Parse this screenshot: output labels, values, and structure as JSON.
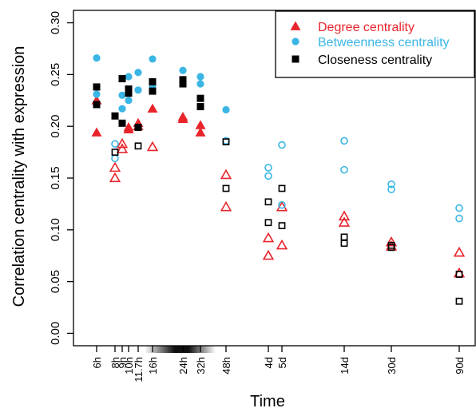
{
  "chart_data": {
    "type": "scatter",
    "xlabel": "Time",
    "ylabel": "Correlation centrality with expression",
    "ylim": [
      -0.012,
      0.312
    ],
    "y_ticks": [
      "0.00",
      "0.05",
      "0.10",
      "0.15",
      "0.20",
      "0.25",
      "0.30"
    ],
    "x_ticks": [
      "6h",
      "8h",
      "9h",
      "10h",
      "11.7h",
      "16h",
      "24h",
      "32h",
      "48h",
      "4d",
      "5d",
      "14d",
      "30d",
      "90d"
    ],
    "legend_position": "top-right",
    "note": "filled markers: 6h-32h (shaded light-dark period on x-axis); open markers: 48h-90d",
    "series": [
      {
        "name": "Degree centrality",
        "color": "#e8242b",
        "marker": "triangle",
        "points": [
          {
            "x": "6h",
            "y": 0.194,
            "filled": true
          },
          {
            "x": "6h",
            "y": 0.225,
            "filled": true
          },
          {
            "x": "8h",
            "y": 0.15,
            "filled": false
          },
          {
            "x": "8h",
            "y": 0.16,
            "filled": false
          },
          {
            "x": "9h",
            "y": 0.178,
            "filled": false
          },
          {
            "x": "9h",
            "y": 0.183,
            "filled": false
          },
          {
            "x": "10h",
            "y": 0.197,
            "filled": true
          },
          {
            "x": "10h",
            "y": 0.199,
            "filled": true
          },
          {
            "x": "11.7h",
            "y": 0.2,
            "filled": true
          },
          {
            "x": "11.7h",
            "y": 0.203,
            "filled": true
          },
          {
            "x": "16h",
            "y": 0.18,
            "filled": false
          },
          {
            "x": "16h",
            "y": 0.217,
            "filled": true
          },
          {
            "x": "24h",
            "y": 0.207,
            "filled": true
          },
          {
            "x": "24h",
            "y": 0.209,
            "filled": true
          },
          {
            "x": "32h",
            "y": 0.194,
            "filled": true
          },
          {
            "x": "32h",
            "y": 0.201,
            "filled": true
          },
          {
            "x": "48h",
            "y": 0.122,
            "filled": false
          },
          {
            "x": "48h",
            "y": 0.153,
            "filled": false
          },
          {
            "x": "4d",
            "y": 0.075,
            "filled": false
          },
          {
            "x": "4d",
            "y": 0.092,
            "filled": false
          },
          {
            "x": "5d",
            "y": 0.085,
            "filled": false
          },
          {
            "x": "5d",
            "y": 0.122,
            "filled": false
          },
          {
            "x": "14d",
            "y": 0.107,
            "filled": false
          },
          {
            "x": "14d",
            "y": 0.113,
            "filled": false
          },
          {
            "x": "30d",
            "y": 0.084,
            "filled": false
          },
          {
            "x": "30d",
            "y": 0.088,
            "filled": false
          },
          {
            "x": "90d",
            "y": 0.058,
            "filled": false
          },
          {
            "x": "90d",
            "y": 0.078,
            "filled": false
          }
        ]
      },
      {
        "name": "Betweenness centrality",
        "color": "#3ab6e4",
        "marker": "circle",
        "points": [
          {
            "x": "6h",
            "y": 0.231,
            "filled": true
          },
          {
            "x": "6h",
            "y": 0.266,
            "filled": true
          },
          {
            "x": "8h",
            "y": 0.169,
            "filled": false
          },
          {
            "x": "8h",
            "y": 0.183,
            "filled": false
          },
          {
            "x": "9h",
            "y": 0.217,
            "filled": true
          },
          {
            "x": "9h",
            "y": 0.23,
            "filled": true
          },
          {
            "x": "10h",
            "y": 0.225,
            "filled": true
          },
          {
            "x": "10h",
            "y": 0.248,
            "filled": true
          },
          {
            "x": "11.7h",
            "y": 0.235,
            "filled": true
          },
          {
            "x": "11.7h",
            "y": 0.252,
            "filled": true
          },
          {
            "x": "16h",
            "y": 0.239,
            "filled": true
          },
          {
            "x": "16h",
            "y": 0.265,
            "filled": true
          },
          {
            "x": "24h",
            "y": 0.245,
            "filled": true
          },
          {
            "x": "24h",
            "y": 0.254,
            "filled": true
          },
          {
            "x": "32h",
            "y": 0.241,
            "filled": true
          },
          {
            "x": "32h",
            "y": 0.248,
            "filled": true
          },
          {
            "x": "48h",
            "y": 0.186,
            "filled": false
          },
          {
            "x": "48h",
            "y": 0.216,
            "filled": true
          },
          {
            "x": "4d",
            "y": 0.152,
            "filled": false
          },
          {
            "x": "4d",
            "y": 0.16,
            "filled": false
          },
          {
            "x": "5d",
            "y": 0.124,
            "filled": false
          },
          {
            "x": "5d",
            "y": 0.182,
            "filled": false
          },
          {
            "x": "14d",
            "y": 0.158,
            "filled": false
          },
          {
            "x": "14d",
            "y": 0.186,
            "filled": false
          },
          {
            "x": "30d",
            "y": 0.139,
            "filled": false
          },
          {
            "x": "30d",
            "y": 0.144,
            "filled": false
          },
          {
            "x": "90d",
            "y": 0.111,
            "filled": false
          },
          {
            "x": "90d",
            "y": 0.121,
            "filled": false
          }
        ]
      },
      {
        "name": "Closeness centrality",
        "color": "#000000",
        "marker": "square",
        "points": [
          {
            "x": "6h",
            "y": 0.221,
            "filled": true
          },
          {
            "x": "6h",
            "y": 0.238,
            "filled": true
          },
          {
            "x": "8h",
            "y": 0.175,
            "filled": false
          },
          {
            "x": "8h",
            "y": 0.21,
            "filled": true
          },
          {
            "x": "9h",
            "y": 0.203,
            "filled": true
          },
          {
            "x": "9h",
            "y": 0.246,
            "filled": true
          },
          {
            "x": "10h",
            "y": 0.232,
            "filled": true
          },
          {
            "x": "10h",
            "y": 0.236,
            "filled": true
          },
          {
            "x": "11.7h",
            "y": 0.181,
            "filled": false
          },
          {
            "x": "11.7h",
            "y": 0.199,
            "filled": true
          },
          {
            "x": "16h",
            "y": 0.234,
            "filled": true
          },
          {
            "x": "16h",
            "y": 0.243,
            "filled": true
          },
          {
            "x": "24h",
            "y": 0.241,
            "filled": true
          },
          {
            "x": "24h",
            "y": 0.245,
            "filled": true
          },
          {
            "x": "32h",
            "y": 0.219,
            "filled": true
          },
          {
            "x": "32h",
            "y": 0.227,
            "filled": true
          },
          {
            "x": "48h",
            "y": 0.14,
            "filled": false
          },
          {
            "x": "48h",
            "y": 0.185,
            "filled": false
          },
          {
            "x": "4d",
            "y": 0.107,
            "filled": false
          },
          {
            "x": "4d",
            "y": 0.127,
            "filled": false
          },
          {
            "x": "5d",
            "y": 0.104,
            "filled": false
          },
          {
            "x": "5d",
            "y": 0.14,
            "filled": false
          },
          {
            "x": "14d",
            "y": 0.087,
            "filled": false
          },
          {
            "x": "14d",
            "y": 0.093,
            "filled": false
          },
          {
            "x": "30d",
            "y": 0.083,
            "filled": false
          },
          {
            "x": "30d",
            "y": 0.085,
            "filled": false
          },
          {
            "x": "90d",
            "y": 0.031,
            "filled": false
          },
          {
            "x": "90d",
            "y": 0.057,
            "filled": false
          }
        ]
      }
    ]
  }
}
